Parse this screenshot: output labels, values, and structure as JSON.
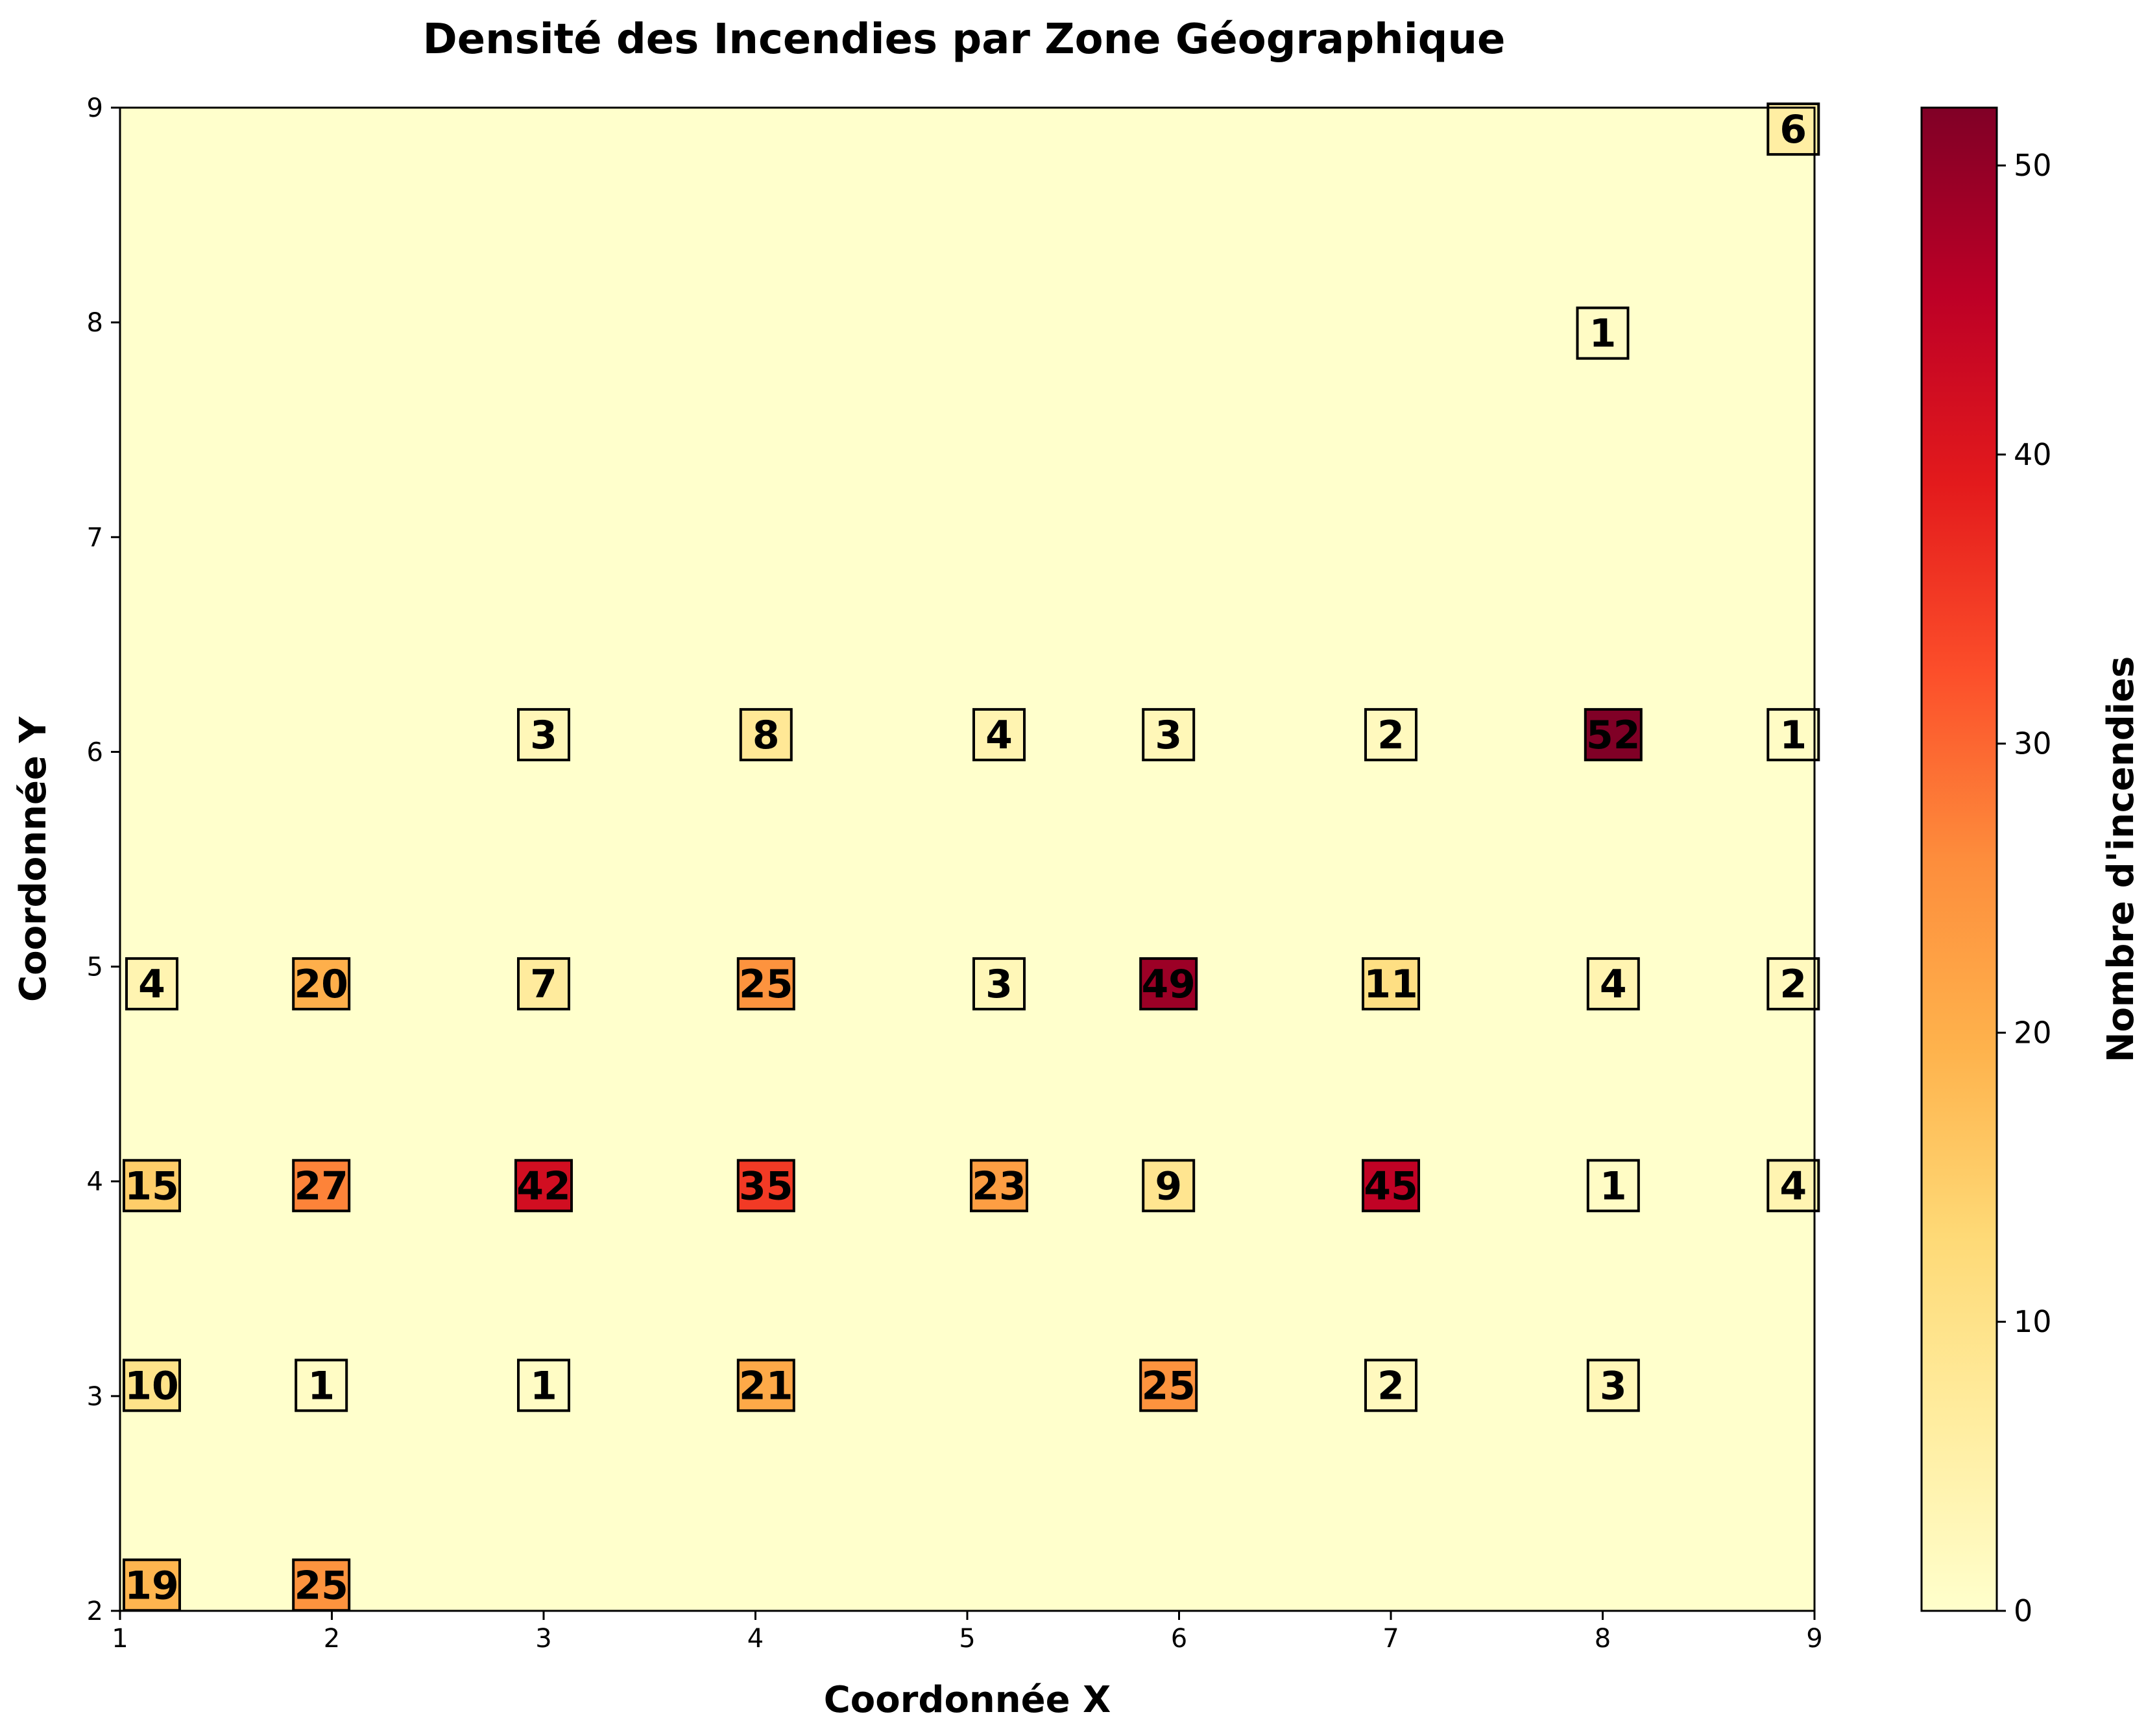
{
  "chart_data": {
    "type": "heatmap",
    "title": "Densité des Incendies par Zone Géographique",
    "xlabel": "Coordonnée X",
    "ylabel": "Coordonnée Y",
    "xlim": [
      1,
      9
    ],
    "ylim": [
      2,
      9
    ],
    "xticks": [
      "1",
      "2",
      "3",
      "4",
      "5",
      "6",
      "7",
      "8",
      "9"
    ],
    "yticks": [
      "2",
      "3",
      "4",
      "5",
      "6",
      "7",
      "8",
      "9"
    ],
    "colorbar": {
      "label": "Nombre d'incendies",
      "min": 0,
      "max": 52,
      "ticks": [
        "0",
        "10",
        "20",
        "30",
        "40",
        "50"
      ],
      "colormap": "YlOrRd"
    },
    "cells": [
      {
        "x": 8.9,
        "y": 8.9,
        "value": 6,
        "text": "6"
      },
      {
        "x": 8.0,
        "y": 7.95,
        "value": 1,
        "text": "1"
      },
      {
        "x": 3.0,
        "y": 6.08,
        "value": 3,
        "text": "3"
      },
      {
        "x": 4.05,
        "y": 6.08,
        "value": 8,
        "text": "8"
      },
      {
        "x": 5.15,
        "y": 6.08,
        "value": 4,
        "text": "4"
      },
      {
        "x": 5.95,
        "y": 6.08,
        "value": 3,
        "text": "3"
      },
      {
        "x": 7.0,
        "y": 6.08,
        "value": 2,
        "text": "2"
      },
      {
        "x": 8.05,
        "y": 6.08,
        "value": 52,
        "text": "52"
      },
      {
        "x": 8.9,
        "y": 6.08,
        "value": 1,
        "text": "1"
      },
      {
        "x": 1.15,
        "y": 4.92,
        "value": 4,
        "text": "4"
      },
      {
        "x": 1.95,
        "y": 4.92,
        "value": 20,
        "text": "20"
      },
      {
        "x": 3.0,
        "y": 4.92,
        "value": 7,
        "text": "7"
      },
      {
        "x": 4.05,
        "y": 4.92,
        "value": 25,
        "text": "25"
      },
      {
        "x": 5.15,
        "y": 4.92,
        "value": 3,
        "text": "3"
      },
      {
        "x": 5.95,
        "y": 4.92,
        "value": 49,
        "text": "49"
      },
      {
        "x": 7.0,
        "y": 4.92,
        "value": 11,
        "text": "11"
      },
      {
        "x": 8.05,
        "y": 4.92,
        "value": 4,
        "text": "4"
      },
      {
        "x": 8.9,
        "y": 4.92,
        "value": 2,
        "text": "2"
      },
      {
        "x": 1.15,
        "y": 3.98,
        "value": 15,
        "text": "15"
      },
      {
        "x": 1.95,
        "y": 3.98,
        "value": 27,
        "text": "27"
      },
      {
        "x": 3.0,
        "y": 3.98,
        "value": 42,
        "text": "42"
      },
      {
        "x": 4.05,
        "y": 3.98,
        "value": 35,
        "text": "35"
      },
      {
        "x": 5.15,
        "y": 3.98,
        "value": 23,
        "text": "23"
      },
      {
        "x": 5.95,
        "y": 3.98,
        "value": 9,
        "text": "9"
      },
      {
        "x": 7.0,
        "y": 3.98,
        "value": 45,
        "text": "45"
      },
      {
        "x": 8.05,
        "y": 3.98,
        "value": 1,
        "text": "1"
      },
      {
        "x": 8.9,
        "y": 3.98,
        "value": 4,
        "text": "4"
      },
      {
        "x": 1.15,
        "y": 3.05,
        "value": 10,
        "text": "10"
      },
      {
        "x": 1.95,
        "y": 3.05,
        "value": 1,
        "text": "1"
      },
      {
        "x": 3.0,
        "y": 3.05,
        "value": 1,
        "text": "1"
      },
      {
        "x": 4.05,
        "y": 3.05,
        "value": 21,
        "text": "21"
      },
      {
        "x": 5.95,
        "y": 3.05,
        "value": 25,
        "text": "25"
      },
      {
        "x": 7.0,
        "y": 3.05,
        "value": 2,
        "text": "2"
      },
      {
        "x": 8.05,
        "y": 3.05,
        "value": 3,
        "text": "3"
      },
      {
        "x": 1.15,
        "y": 2.12,
        "value": 19,
        "text": "19"
      },
      {
        "x": 1.95,
        "y": 2.12,
        "value": 25,
        "text": "25"
      }
    ]
  }
}
